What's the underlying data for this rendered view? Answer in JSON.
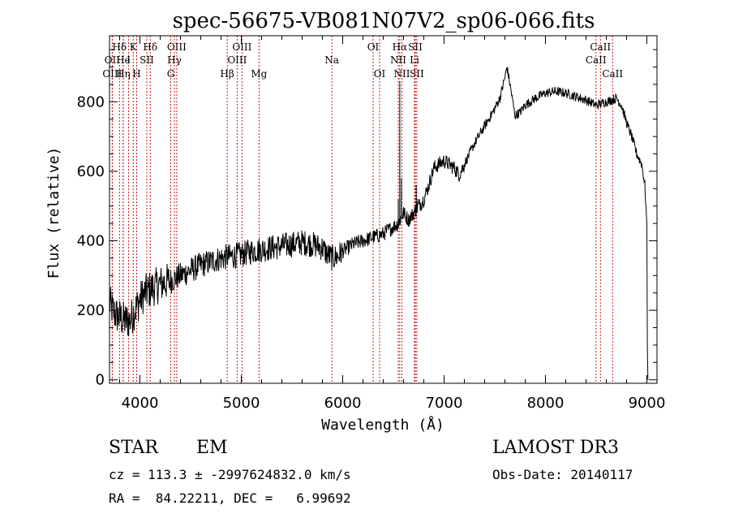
{
  "chart_data": {
    "type": "line",
    "title": "spec-56675-VB081N07V2_sp06-066.fits",
    "xlabel": "Wavelength (Å)",
    "ylabel": "Flux (relative)",
    "xlim": [
      3700,
      9100
    ],
    "ylim": [
      -10,
      990
    ],
    "xticks": [
      4000,
      5000,
      6000,
      7000,
      8000,
      9000
    ],
    "yticks": [
      0,
      200,
      400,
      600,
      800
    ],
    "grid": false,
    "series": [
      {
        "name": "flux",
        "anchors": [
          [
            3700,
            220
          ],
          [
            3750,
            190
          ],
          [
            3800,
            180
          ],
          [
            3850,
            170
          ],
          [
            3900,
            170
          ],
          [
            3950,
            200
          ],
          [
            4000,
            230
          ],
          [
            4050,
            250
          ],
          [
            4100,
            260
          ],
          [
            4200,
            275
          ],
          [
            4300,
            285
          ],
          [
            4400,
            300
          ],
          [
            4500,
            315
          ],
          [
            4600,
            330
          ],
          [
            4700,
            340
          ],
          [
            4800,
            350
          ],
          [
            4900,
            355
          ],
          [
            5000,
            360
          ],
          [
            5100,
            370
          ],
          [
            5200,
            375
          ],
          [
            5300,
            380
          ],
          [
            5400,
            385
          ],
          [
            5500,
            390
          ],
          [
            5600,
            395
          ],
          [
            5700,
            390
          ],
          [
            5800,
            380
          ],
          [
            5850,
            360
          ],
          [
            5900,
            350
          ],
          [
            5950,
            355
          ],
          [
            6000,
            370
          ],
          [
            6100,
            390
          ],
          [
            6200,
            400
          ],
          [
            6300,
            410
          ],
          [
            6400,
            420
          ],
          [
            6500,
            440
          ],
          [
            6550,
            450
          ],
          [
            6600,
            480
          ],
          [
            6650,
            460
          ],
          [
            6700,
            480
          ],
          [
            6750,
            500
          ],
          [
            6800,
            520
          ],
          [
            6850,
            560
          ],
          [
            6900,
            610
          ],
          [
            7000,
            630
          ],
          [
            7100,
            610
          ],
          [
            7150,
            590
          ],
          [
            7200,
            620
          ],
          [
            7300,
            680
          ],
          [
            7400,
            730
          ],
          [
            7500,
            780
          ],
          [
            7550,
            810
          ],
          [
            7600,
            870
          ],
          [
            7620,
            900
          ],
          [
            7650,
            850
          ],
          [
            7700,
            760
          ],
          [
            7750,
            770
          ],
          [
            7800,
            790
          ],
          [
            7900,
            810
          ],
          [
            8000,
            825
          ],
          [
            8100,
            830
          ],
          [
            8200,
            825
          ],
          [
            8300,
            815
          ],
          [
            8400,
            805
          ],
          [
            8500,
            790
          ],
          [
            8600,
            800
          ],
          [
            8700,
            810
          ],
          [
            8750,
            790
          ],
          [
            8800,
            740
          ],
          [
            8850,
            700
          ],
          [
            8900,
            650
          ],
          [
            8950,
            620
          ],
          [
            8980,
            560
          ],
          [
            9000,
            450
          ],
          [
            9005,
            100
          ],
          [
            9010,
            0
          ]
        ],
        "spikes": [
          [
            6563,
            860
          ],
          [
            6580,
            580
          ],
          [
            6548,
            520
          ],
          [
            6725,
            560
          ],
          [
            6740,
            520
          ]
        ]
      }
    ],
    "lines": [
      {
        "label": "Hδ",
        "wl": 3798,
        "row": 1
      },
      {
        "label": "OII",
        "wl": 3727,
        "row": 2
      },
      {
        "label": "OIII",
        "wl": 3727,
        "row": 3
      },
      {
        "label": "He",
        "wl": 3835,
        "row": 2
      },
      {
        "label": "Hη",
        "wl": 3835,
        "row": 3
      },
      {
        "label": "K",
        "wl": 3934,
        "row": 1
      },
      {
        "label": "I",
        "wl": 3889,
        "row": 2
      },
      {
        "label": "SII",
        "wl": 4068,
        "row": 2
      },
      {
        "label": "H",
        "wl": 3968,
        "row": 3
      },
      {
        "label": "Hδ",
        "wl": 4102,
        "row": 1
      },
      {
        "label": "OIII",
        "wl": 4363,
        "row": 1
      },
      {
        "label": "Hγ",
        "wl": 4340,
        "row": 2
      },
      {
        "label": "G",
        "wl": 4304,
        "row": 3
      },
      {
        "label": "Hβ",
        "wl": 4861,
        "row": 3
      },
      {
        "label": "OIII",
        "wl": 5007,
        "row": 1
      },
      {
        "label": "OIII",
        "wl": 4959,
        "row": 2
      },
      {
        "label": "Mg",
        "wl": 5175,
        "row": 3
      },
      {
        "label": "Na",
        "wl": 5893,
        "row": 2
      },
      {
        "label": "OI",
        "wl": 6300,
        "row": 1
      },
      {
        "label": "OI",
        "wl": 6364,
        "row": 3
      },
      {
        "label": "Hα",
        "wl": 6563,
        "row": 1
      },
      {
        "label": "NII",
        "wl": 6548,
        "row": 2
      },
      {
        "label": "NII",
        "wl": 6584,
        "row": 3
      },
      {
        "label": "SII",
        "wl": 6716,
        "row": 1
      },
      {
        "label": "Li",
        "wl": 6708,
        "row": 2
      },
      {
        "label": "SII",
        "wl": 6731,
        "row": 3
      },
      {
        "label": "CaII",
        "wl": 8542,
        "row": 1
      },
      {
        "label": "CaII",
        "wl": 8498,
        "row": 2
      },
      {
        "label": "CaII",
        "wl": 8662,
        "row": 3
      }
    ],
    "line_color": "#c00000"
  },
  "info": {
    "class": "STAR",
    "subclass": "EM",
    "survey": "LAMOST DR3",
    "cz": "cz = 113.3 ± -2997624832.0 km/s",
    "obs_date": "Obs-Date: 20140117",
    "coords": "RA =  84.22211, DEC =   6.99692"
  }
}
